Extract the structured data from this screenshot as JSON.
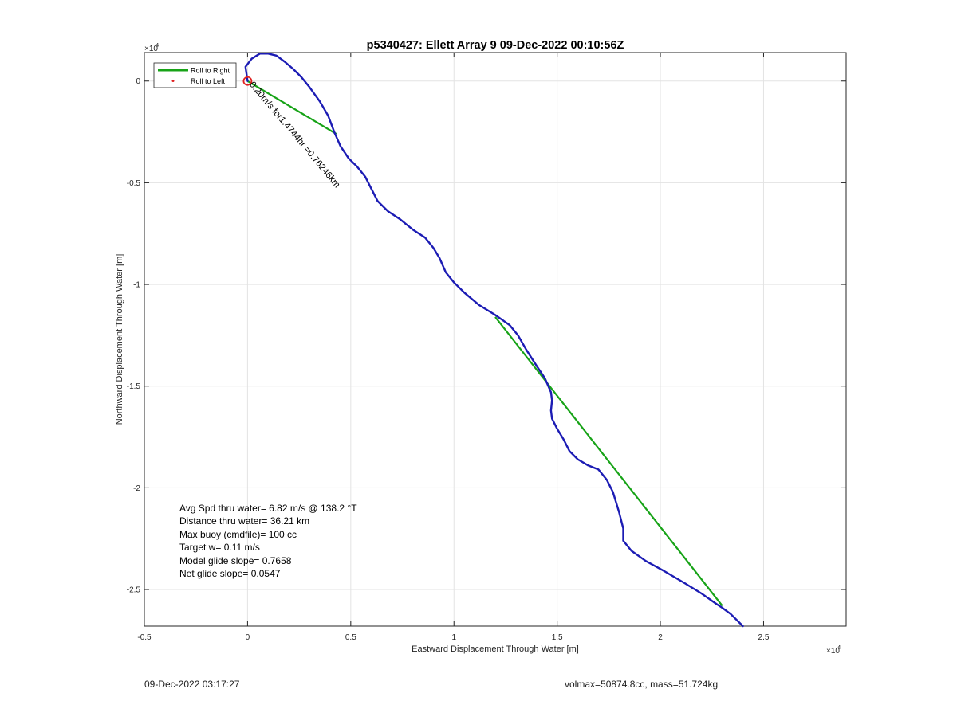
{
  "chart_data": {
    "type": "line",
    "title": "p5340427: Ellett Array 9 09-Dec-2022 00:10:56Z",
    "xlabel": "Eastward Displacement Through Water [m]",
    "ylabel": "Northward Displacement Through Water [m]",
    "x_multiplier": "×10",
    "x_exponent": "4",
    "y_multiplier": "×10",
    "y_exponent": "4",
    "xlim": [
      -0.5,
      2.9
    ],
    "ylim": [
      -2.68,
      0.14
    ],
    "xticks": [
      -0.5,
      0,
      0.5,
      1,
      1.5,
      2,
      2.5
    ],
    "xtick_labels": [
      "-0.5",
      "0",
      "0.5",
      "1",
      "1.5",
      "2",
      "2.5"
    ],
    "yticks": [
      0,
      -0.5,
      -1,
      -1.5,
      -2,
      -2.5
    ],
    "ytick_labels": [
      "0",
      "-0.5",
      "-1",
      "-1.5",
      "-2",
      "-2.5"
    ],
    "grid": true,
    "legend_position": "top-left",
    "legend": [
      {
        "label": "Roll to Right",
        "color": "#17a317",
        "style": "line"
      },
      {
        "label": "Roll to Left",
        "color": "#e02020",
        "style": "dot"
      }
    ],
    "series": [
      {
        "name": "Roll to Right",
        "color": "#17a317",
        "segments": [
          [
            [
              0.0,
              0.0
            ],
            [
              0.43,
              -0.26
            ]
          ],
          [
            [
              1.2,
              -1.16
            ],
            [
              2.3,
              -2.58
            ]
          ]
        ]
      },
      {
        "color": "#1c1cb4",
        "points": [
          [
            0.0,
            0.0
          ],
          [
            -0.01,
            0.07
          ],
          [
            0.02,
            0.11
          ],
          [
            0.06,
            0.135
          ],
          [
            0.1,
            0.135
          ],
          [
            0.14,
            0.125
          ],
          [
            0.18,
            0.095
          ],
          [
            0.22,
            0.06
          ],
          [
            0.26,
            0.02
          ],
          [
            0.3,
            -0.03
          ],
          [
            0.35,
            -0.1
          ],
          [
            0.39,
            -0.17
          ],
          [
            0.42,
            -0.25
          ],
          [
            0.45,
            -0.32
          ],
          [
            0.49,
            -0.38
          ],
          [
            0.53,
            -0.42
          ],
          [
            0.57,
            -0.47
          ],
          [
            0.6,
            -0.53
          ],
          [
            0.63,
            -0.59
          ],
          [
            0.68,
            -0.64
          ],
          [
            0.74,
            -0.68
          ],
          [
            0.8,
            -0.73
          ],
          [
            0.86,
            -0.77
          ],
          [
            0.9,
            -0.82
          ],
          [
            0.93,
            -0.87
          ],
          [
            0.96,
            -0.94
          ],
          [
            1.0,
            -0.99
          ],
          [
            1.05,
            -1.04
          ],
          [
            1.12,
            -1.1
          ],
          [
            1.2,
            -1.15
          ],
          [
            1.27,
            -1.2
          ],
          [
            1.31,
            -1.25
          ],
          [
            1.35,
            -1.32
          ],
          [
            1.4,
            -1.4
          ],
          [
            1.44,
            -1.46
          ],
          [
            1.47,
            -1.53
          ],
          [
            1.475,
            -1.57
          ],
          [
            1.47,
            -1.62
          ],
          [
            1.475,
            -1.66
          ],
          [
            1.5,
            -1.71
          ],
          [
            1.53,
            -1.76
          ],
          [
            1.56,
            -1.82
          ],
          [
            1.6,
            -1.86
          ],
          [
            1.65,
            -1.89
          ],
          [
            1.7,
            -1.91
          ],
          [
            1.74,
            -1.96
          ],
          [
            1.77,
            -2.02
          ],
          [
            1.8,
            -2.12
          ],
          [
            1.82,
            -2.2
          ],
          [
            1.82,
            -2.26
          ],
          [
            1.86,
            -2.31
          ],
          [
            1.93,
            -2.36
          ],
          [
            2.02,
            -2.41
          ],
          [
            2.12,
            -2.47
          ],
          [
            2.2,
            -2.52
          ],
          [
            2.27,
            -2.57
          ],
          [
            2.3,
            -2.59
          ],
          [
            2.34,
            -2.62
          ],
          [
            2.38,
            -2.66
          ],
          [
            2.4,
            -2.68
          ]
        ]
      }
    ],
    "start_marker": {
      "x": 0.0,
      "y": 0.0,
      "color": "#e02020",
      "style": "circle"
    },
    "annotation": {
      "text": "0.20m/s for1.4744hr =0.76246km",
      "x": 0.0,
      "y": -0.01,
      "rotation_deg": 50
    },
    "stats": [
      "Avg Spd thru water=  6.82 m/s @ 138.2 °T",
      "Distance thru water= 36.21 km",
      "Max buoy (cmdfile)= 100 cc",
      "Target w= 0.11 m/s",
      "Model glide slope= 0.7658",
      "Net glide slope= 0.0547"
    ]
  },
  "footer": {
    "timestamp": "09-Dec-2022 03:17:27",
    "volmax_mass": "volmax=50874.8cc, mass=51.724kg"
  }
}
